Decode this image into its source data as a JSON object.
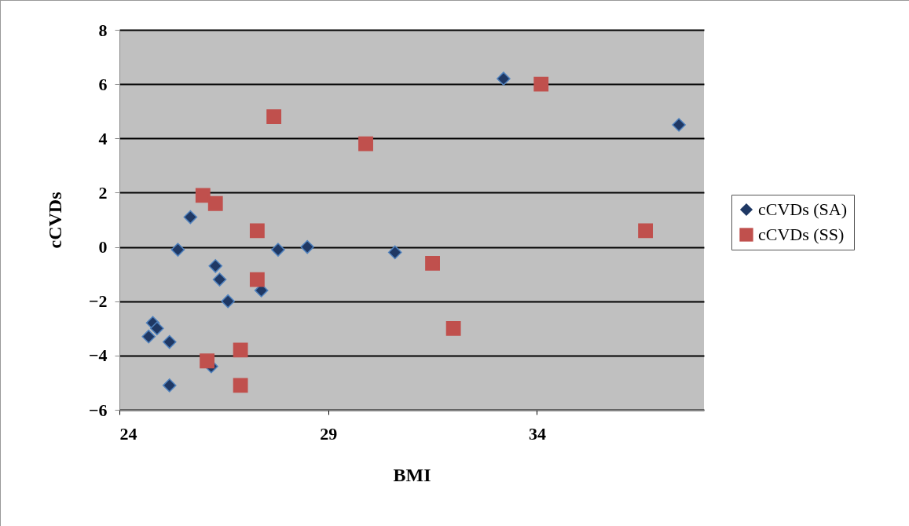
{
  "chart_data": {
    "type": "scatter",
    "xlabel": "BMI",
    "ylabel": "cCVDs",
    "xlim": [
      24,
      38
    ],
    "xticks": [
      24,
      29,
      34
    ],
    "ylim": [
      -6,
      8
    ],
    "yticks": [
      -6,
      -4,
      -2,
      0,
      2,
      4,
      6,
      8
    ],
    "grid": "y",
    "legend": "right",
    "series": [
      {
        "name": "cCVDs (SA)",
        "color": "#1f3864",
        "marker": "diamond",
        "x": [
          24.7,
          24.8,
          24.9,
          25.2,
          25.2,
          25.4,
          25.7,
          26.3,
          26.4,
          26.6,
          26.2,
          27.4,
          27.8,
          28.5,
          30.6,
          33.2,
          37.4
        ],
        "values": [
          -3.3,
          -2.8,
          -3.0,
          -3.5,
          -5.1,
          -0.1,
          1.1,
          -0.7,
          -1.2,
          -2.0,
          -4.4,
          -1.6,
          -0.1,
          0.0,
          -0.2,
          6.2,
          4.5
        ]
      },
      {
        "name": "cCVDs (SS)",
        "color": "#c0504d",
        "marker": "square",
        "x": [
          26.0,
          26.3,
          26.1,
          26.9,
          26.9,
          27.3,
          27.3,
          27.7,
          29.9,
          31.5,
          32.0,
          34.1,
          36.6
        ],
        "values": [
          1.9,
          1.6,
          -4.2,
          -3.8,
          -5.1,
          0.6,
          -1.2,
          4.8,
          3.8,
          -0.6,
          -3.0,
          6.0,
          0.6
        ]
      }
    ]
  }
}
